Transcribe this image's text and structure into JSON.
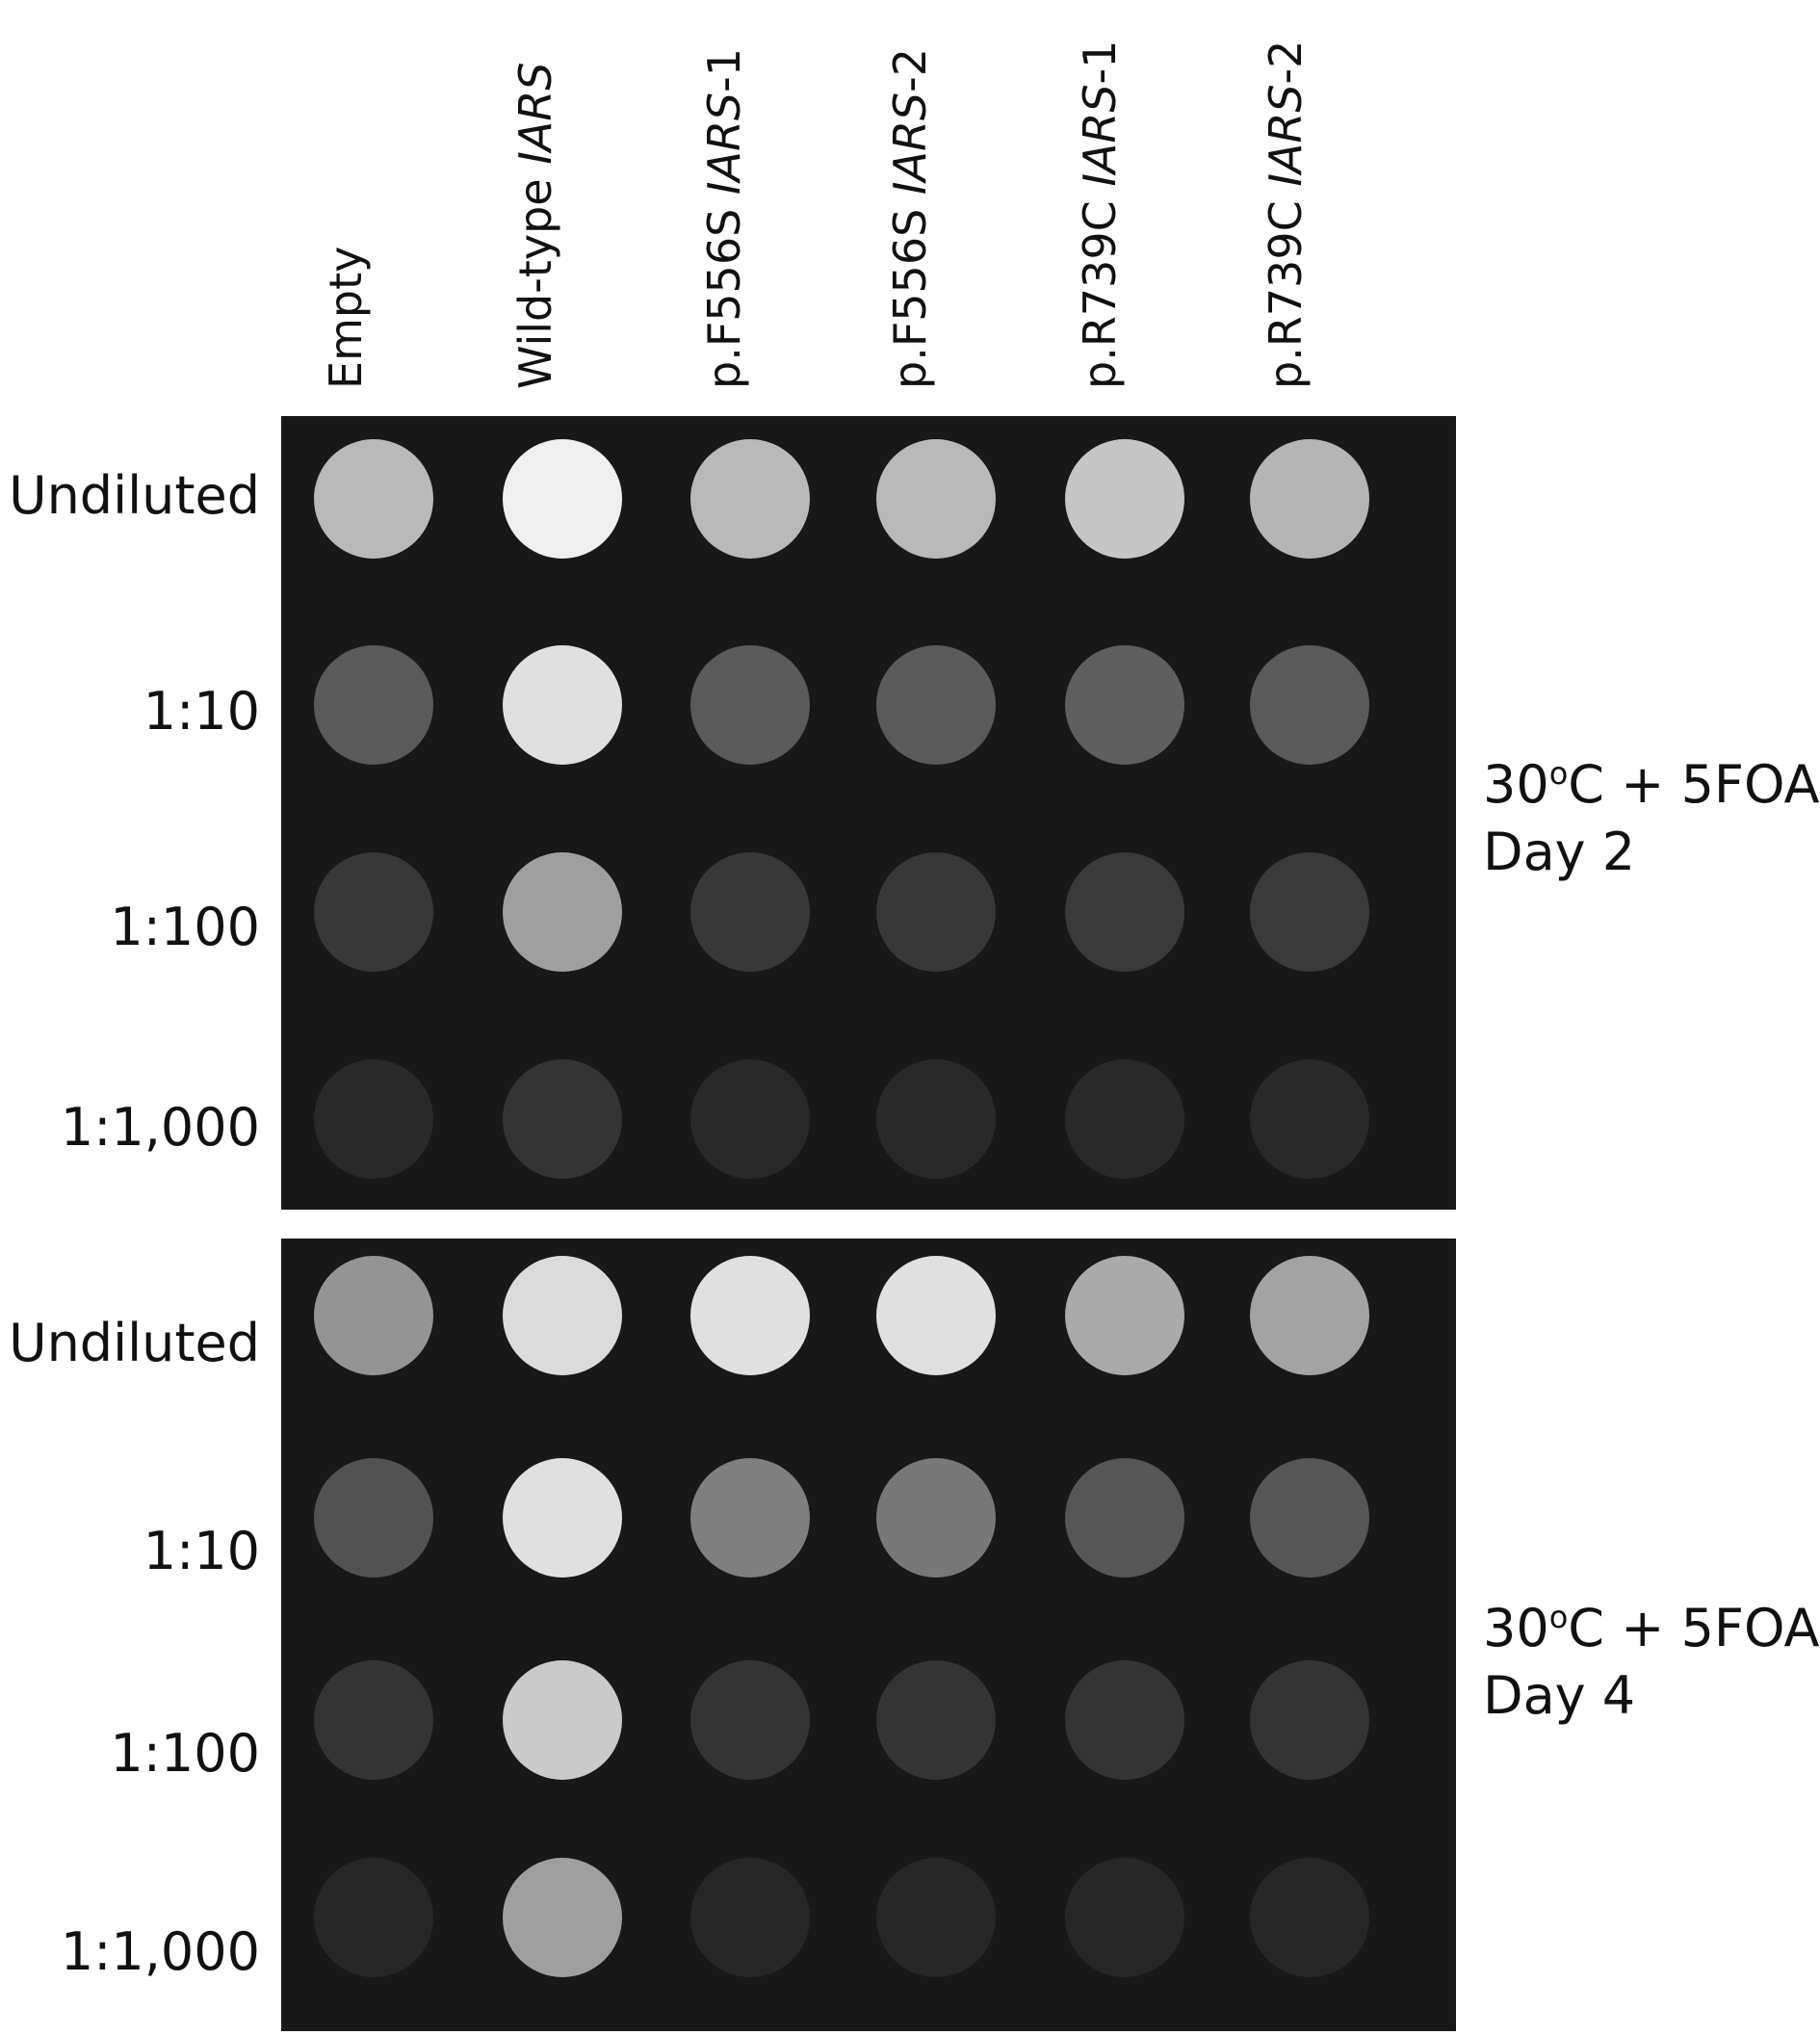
{
  "columns": [
    {
      "prefix": "Empty",
      "italic": ""
    },
    {
      "prefix": "Wild-type ",
      "italic": "IARS"
    },
    {
      "prefix": "p.F556S ",
      "italic": "IARS",
      "suffix": "-1"
    },
    {
      "prefix": "p.F556S ",
      "italic": "IARS",
      "suffix": "-2"
    },
    {
      "prefix": "p.R739C ",
      "italic": "IARS",
      "suffix": "-1"
    },
    {
      "prefix": "p.R739C ",
      "italic": "IARS",
      "suffix": "-2"
    }
  ],
  "rows": [
    "Undiluted",
    "1:10",
    "1:100",
    "1:1,000"
  ],
  "panels": [
    {
      "condition_line1_a": "30",
      "condition_line1_sup": "o",
      "condition_line1_b": "C + 5FOA",
      "condition_line2": "Day 2",
      "growth": [
        [
          0.72,
          0.97,
          0.72,
          0.72,
          0.78,
          0.7
        ],
        [
          0.28,
          0.9,
          0.28,
          0.28,
          0.3,
          0.28
        ],
        [
          0.12,
          0.6,
          0.12,
          0.12,
          0.13,
          0.13
        ],
        [
          0.05,
          0.1,
          0.05,
          0.05,
          0.05,
          0.05
        ]
      ]
    },
    {
      "condition_line1_a": "30",
      "condition_line1_sup": "o",
      "condition_line1_b": "C + 5FOA",
      "condition_line2": "Day 4",
      "growth": [
        [
          0.55,
          0.88,
          0.9,
          0.9,
          0.65,
          0.62
        ],
        [
          0.24,
          0.9,
          0.45,
          0.42,
          0.26,
          0.26
        ],
        [
          0.1,
          0.8,
          0.1,
          0.1,
          0.1,
          0.1
        ],
        [
          0.04,
          0.6,
          0.04,
          0.04,
          0.04,
          0.04
        ]
      ]
    }
  ]
}
